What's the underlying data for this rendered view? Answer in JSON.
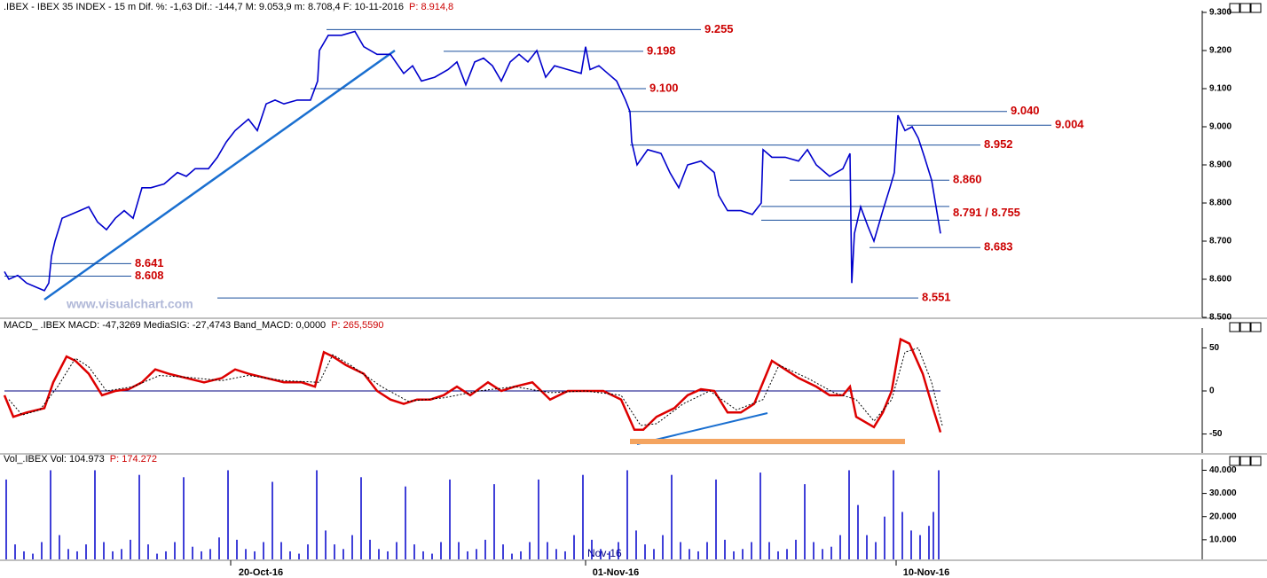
{
  "watermark": "www.visualchart.com",
  "overlay_label": "Nov-16",
  "chart_data": [
    {
      "type": "line",
      "title": ".IBEX - IBEX 35 INDEX - 15 m Dif. %: -1,63 Dif.: -144,7 M: 9.053,9 m: 8.708,4 F: 10-11-2016",
      "subtitle": "P: 8.914,8",
      "color": "#0000cc",
      "xlim": [
        0,
        1355
      ],
      "x": [
        5,
        10,
        20,
        30,
        40,
        50,
        55,
        58,
        62,
        70,
        80,
        90,
        100,
        110,
        120,
        130,
        140,
        150,
        160,
        170,
        185,
        200,
        210,
        220,
        235,
        245,
        255,
        265,
        280,
        290,
        300,
        310,
        320,
        335,
        350,
        358,
        360,
        370,
        385,
        400,
        410,
        425,
        440,
        455,
        465,
        475,
        490,
        505,
        515,
        525,
        535,
        545,
        555,
        565,
        575,
        585,
        595,
        605,
        615,
        625,
        640,
        655,
        660,
        665,
        675,
        685,
        695,
        705,
        710,
        712,
        718,
        730,
        745,
        755,
        765,
        775,
        790,
        805,
        810,
        820,
        835,
        848,
        858,
        860,
        870,
        885,
        900,
        910,
        920,
        935,
        950,
        958,
        960,
        963,
        970,
        978,
        985,
        995,
        1003,
        1008,
        1012,
        1016,
        1020,
        1028,
        1035,
        1042,
        1050,
        1055,
        1060
      ],
      "values": [
        8620,
        8600,
        8610,
        8590,
        8580,
        8570,
        8590,
        8660,
        8700,
        8760,
        8770,
        8780,
        8790,
        8750,
        8730,
        8760,
        8780,
        8760,
        8840,
        8840,
        8850,
        8880,
        8870,
        8890,
        8890,
        8920,
        8960,
        8990,
        9020,
        8990,
        9060,
        9070,
        9060,
        9070,
        9070,
        9120,
        9200,
        9240,
        9240,
        9250,
        9210,
        9190,
        9190,
        9140,
        9160,
        9120,
        9130,
        9150,
        9170,
        9110,
        9170,
        9180,
        9160,
        9120,
        9170,
        9190,
        9170,
        9200,
        9130,
        9160,
        9150,
        9140,
        9210,
        9150,
        9160,
        9140,
        9120,
        9070,
        9040,
        8960,
        8900,
        8940,
        8930,
        8880,
        8840,
        8900,
        8910,
        8880,
        8820,
        8780,
        8780,
        8770,
        8800,
        8940,
        8920,
        8920,
        8910,
        8940,
        8900,
        8870,
        8890,
        8930,
        8590,
        8720,
        8790,
        8740,
        8700,
        8780,
        8840,
        8880,
        9030,
        9010,
        8990,
        9000,
        8970,
        8920,
        8860,
        8790,
        8720
      ],
      "levels": [
        {
          "value": 9255,
          "label": "9.255"
        },
        {
          "value": 9198,
          "label": "9.198"
        },
        {
          "value": 9100,
          "label": "9.100"
        },
        {
          "value": 9040,
          "label": "9.040"
        },
        {
          "value": 9004,
          "label": "9.004"
        },
        {
          "value": 8952,
          "label": "8.952"
        },
        {
          "value": 8860,
          "label": "8.860"
        },
        {
          "values": [
            8791,
            8755
          ],
          "label": "8.791 / 8.755"
        },
        {
          "value": 8683,
          "label": "8.683"
        },
        {
          "value": 8641,
          "label": "8.641"
        },
        {
          "value": 8608,
          "label": "8.608"
        },
        {
          "value": 8551,
          "label": "8.551"
        }
      ],
      "ylim": [
        8500,
        9300
      ],
      "yticks": [
        {
          "value": 8500,
          "label": "8.500"
        },
        {
          "value": 8600,
          "label": "8.600"
        },
        {
          "value": 8700,
          "label": "8.700"
        },
        {
          "value": 8800,
          "label": "8.800"
        },
        {
          "value": 8900,
          "label": "8.900"
        },
        {
          "value": 9000,
          "label": "9.000"
        },
        {
          "value": 9100,
          "label": "9.100"
        },
        {
          "value": 9200,
          "label": "9.200"
        },
        {
          "value": 9300,
          "label": "9.300"
        }
      ]
    },
    {
      "type": "line",
      "title": "MACD_ .IBEX MACD: -47,3269 MediaSIG: -27,4743 Band_MACD: 0,0000",
      "subtitle": "P: 265,5590",
      "xlim": [
        0,
        1355
      ],
      "zero_line": true,
      "series": [
        {
          "color": "#dd0000",
          "x": [
            5,
            15,
            30,
            50,
            60,
            75,
            85,
            100,
            115,
            130,
            145,
            160,
            175,
            190,
            210,
            230,
            250,
            265,
            280,
            300,
            320,
            340,
            355,
            365,
            375,
            390,
            410,
            425,
            440,
            455,
            470,
            485,
            500,
            515,
            530,
            550,
            565,
            580,
            600,
            620,
            640,
            660,
            680,
            700,
            715,
            725,
            740,
            760,
            775,
            790,
            805,
            820,
            835,
            850,
            860,
            870,
            885,
            900,
            920,
            935,
            950,
            958,
            965,
            985,
            995,
            1005,
            1015,
            1025,
            1040,
            1050,
            1060
          ],
          "values": [
            -5,
            -30,
            -25,
            -20,
            10,
            40,
            35,
            20,
            -5,
            0,
            2,
            10,
            25,
            20,
            15,
            10,
            15,
            25,
            20,
            15,
            10,
            10,
            5,
            45,
            40,
            30,
            20,
            0,
            -10,
            -15,
            -10,
            -10,
            -5,
            5,
            -5,
            10,
            0,
            5,
            10,
            -10,
            0,
            0,
            0,
            -10,
            -45,
            -45,
            -30,
            -20,
            -5,
            2,
            0,
            -25,
            -25,
            -15,
            10,
            35,
            25,
            15,
            5,
            -5,
            -5,
            5,
            -30,
            -42,
            -25,
            0,
            60,
            55,
            20,
            -15,
            -48
          ]
        },
        {
          "color": "#000000",
          "x": [
            10,
            25,
            45,
            65,
            85,
            100,
            120,
            150,
            180,
            210,
            250,
            280,
            320,
            360,
            375,
            395,
            430,
            460,
            500,
            540,
            580,
            620,
            660,
            700,
            722,
            740,
            770,
            800,
            830,
            860,
            878,
            910,
            940,
            965,
            985,
            1005,
            1020,
            1035,
            1050,
            1062
          ],
          "values": [
            -10,
            -28,
            -22,
            5,
            38,
            28,
            0,
            5,
            18,
            16,
            12,
            18,
            12,
            10,
            42,
            30,
            5,
            -12,
            -8,
            0,
            5,
            -2,
            0,
            -5,
            -40,
            -38,
            -15,
            0,
            -22,
            -10,
            30,
            15,
            -2,
            -10,
            -35,
            -10,
            45,
            50,
            10,
            -40
          ]
        }
      ],
      "ylim": [
        -70,
        70
      ],
      "yticks": [
        -50,
        0,
        50
      ]
    },
    {
      "type": "bar",
      "title": "Vol_.IBEX Vol: 104.973",
      "subtitle": "P: 174.272",
      "color": "#0000cc",
      "xlim": [
        0,
        1355
      ],
      "x": [
        7,
        17,
        27,
        37,
        47,
        57,
        67,
        77,
        87,
        97,
        107,
        117,
        127,
        137,
        147,
        157,
        167,
        177,
        187,
        197,
        207,
        217,
        227,
        237,
        247,
        257,
        267,
        277,
        287,
        297,
        307,
        317,
        327,
        337,
        347,
        357,
        367,
        377,
        387,
        397,
        407,
        417,
        427,
        437,
        447,
        457,
        467,
        477,
        487,
        497,
        507,
        517,
        527,
        537,
        547,
        557,
        567,
        577,
        587,
        597,
        607,
        617,
        627,
        637,
        647,
        657,
        667,
        677,
        687,
        697,
        707,
        717,
        727,
        737,
        747,
        757,
        767,
        777,
        787,
        797,
        807,
        817,
        827,
        837,
        847,
        857,
        867,
        877,
        887,
        897,
        907,
        917,
        927,
        937,
        947,
        957,
        967,
        977,
        987,
        997,
        1007,
        1017,
        1027,
        1037,
        1047,
        1052,
        1058
      ],
      "values": [
        36000,
        8000,
        5000,
        4000,
        9000,
        40000,
        12000,
        6000,
        5000,
        8000,
        40000,
        9000,
        5000,
        6000,
        10000,
        38000,
        8000,
        4000,
        5000,
        9000,
        37000,
        7000,
        5000,
        6000,
        11000,
        40000,
        10000,
        6000,
        5000,
        9000,
        35000,
        9000,
        5000,
        4000,
        8000,
        40000,
        14000,
        8000,
        6000,
        12000,
        37000,
        10000,
        6000,
        5000,
        9000,
        33000,
        8000,
        5000,
        4000,
        9000,
        36000,
        9000,
        5000,
        6000,
        10000,
        34000,
        8000,
        4000,
        5000,
        9000,
        36000,
        9000,
        6000,
        5000,
        12000,
        38000,
        10000,
        6000,
        5000,
        9000,
        40000,
        14000,
        8000,
        6000,
        12000,
        38000,
        9000,
        6000,
        5000,
        9000,
        36000,
        10000,
        5000,
        6000,
        9000,
        39000,
        9000,
        5000,
        6000,
        10000,
        34000,
        9000,
        6000,
        7000,
        12000,
        40000,
        25000,
        12000,
        9000,
        20000,
        40000,
        22000,
        14000,
        12000,
        16000,
        22000,
        40000
      ],
      "ylim": [
        0,
        44000
      ],
      "yticks": [
        {
          "value": 10000,
          "label": "10.000"
        },
        {
          "value": 20000,
          "label": "20.000"
        },
        {
          "value": 30000,
          "label": "30.000"
        },
        {
          "value": 40000,
          "label": "40.000"
        }
      ],
      "xticks": [
        {
          "value": 260,
          "label": "20-Oct-16"
        },
        {
          "value": 660,
          "label": "01-Nov-16"
        },
        {
          "value": 1010,
          "label": "10-Nov-16"
        }
      ]
    }
  ]
}
